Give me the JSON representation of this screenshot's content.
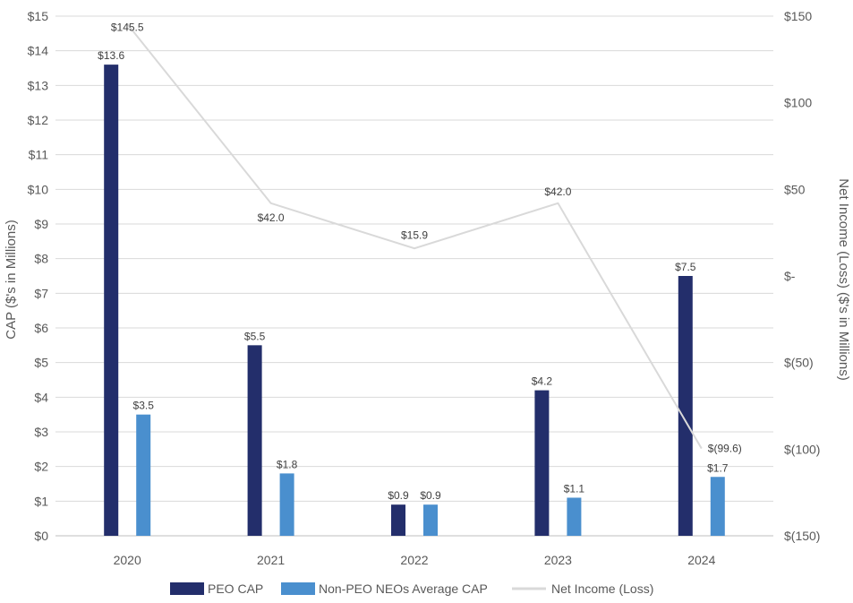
{
  "chart_data": {
    "type": "bar",
    "title": "",
    "categories": [
      "2020",
      "2021",
      "2022",
      "2023",
      "2024"
    ],
    "ylabel": "CAP ($'s in Millions)",
    "y2label": "Net Income (Loss) ($'s in Millions)",
    "ylim": [
      0,
      15
    ],
    "y2lim": [
      -150,
      150
    ],
    "y_ticks": [
      "$0",
      "$1",
      "$2",
      "$3",
      "$4",
      "$5",
      "$6",
      "$7",
      "$8",
      "$9",
      "$10",
      "$11",
      "$12",
      "$13",
      "$14",
      "$15"
    ],
    "y2_ticks": [
      {
        "value": 150,
        "label": "$150"
      },
      {
        "value": 100,
        "label": "$100"
      },
      {
        "value": 50,
        "label": "$50"
      },
      {
        "value": 0,
        "label": "$-"
      },
      {
        "value": -50,
        "label": "$(50)"
      },
      {
        "value": -100,
        "label": "$(100)"
      },
      {
        "value": -150,
        "label": "$(150)"
      }
    ],
    "grid": true,
    "legend_position": "bottom",
    "series": [
      {
        "name": "PEO CAP",
        "kind": "bar",
        "axis": "left",
        "color": "#232e6b",
        "values": [
          13.6,
          5.5,
          0.9,
          4.2,
          7.5
        ],
        "labels": [
          "$13.6",
          "$5.5",
          "$0.9",
          "$4.2",
          "$7.5"
        ]
      },
      {
        "name": "Non-PEO NEOs Average CAP",
        "kind": "bar",
        "axis": "left",
        "color": "#4a8fce",
        "values": [
          3.5,
          1.8,
          0.9,
          1.1,
          1.7
        ],
        "labels": [
          "$3.5",
          "$1.8",
          "$0.9",
          "$1.1",
          "$1.7"
        ]
      },
      {
        "name": "Net Income (Loss)",
        "kind": "line",
        "axis": "right",
        "color": "#d9d9d9",
        "values": [
          145.5,
          42.0,
          15.9,
          42.0,
          -99.6
        ],
        "labels": [
          "$145.5",
          "$42.0",
          "$15.9",
          "$42.0",
          "$(99.6)"
        ]
      }
    ]
  }
}
